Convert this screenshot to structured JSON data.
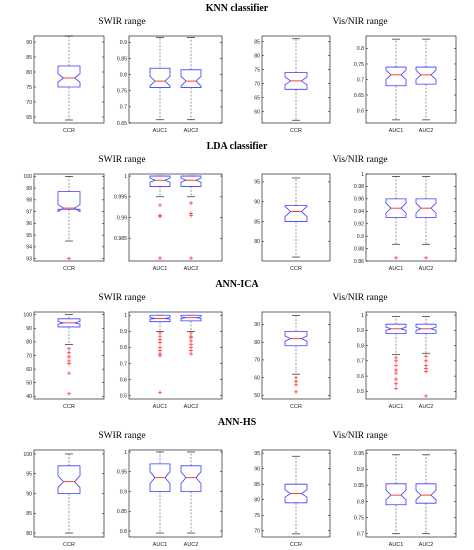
{
  "chart_data": [
    {
      "section": "KNN classifier",
      "range_titles": [
        "SWIR range",
        "Vis/NIR range"
      ],
      "panels": [
        {
          "type": "box",
          "categories": [
            "CCR"
          ],
          "ylim": [
            63,
            92
          ],
          "yticks": [
            "65",
            "70",
            "75",
            "80",
            "85",
            "90"
          ],
          "boxes": [
            {
              "min": 64,
              "q1": 75,
              "median": 78,
              "q3": 82,
              "max": 92,
              "notch_lo": 76.6,
              "notch_hi": 79.4,
              "outliers": []
            }
          ]
        },
        {
          "type": "box",
          "categories": [
            "AUC1",
            "AUC2"
          ],
          "ylim": [
            0.65,
            0.92
          ],
          "yticks": [
            "0.65",
            "0.7",
            "0.75",
            "0.8",
            "0.85",
            "0.9"
          ],
          "boxes": [
            {
              "min": 0.66,
              "q1": 0.76,
              "median": 0.78,
              "q3": 0.82,
              "max": 0.915,
              "notch_lo": 0.765,
              "notch_hi": 0.795,
              "outliers": []
            },
            {
              "min": 0.66,
              "q1": 0.76,
              "median": 0.78,
              "q3": 0.815,
              "max": 0.915,
              "notch_lo": 0.765,
              "notch_hi": 0.795,
              "outliers": []
            }
          ]
        },
        {
          "type": "box",
          "categories": [
            "CCR"
          ],
          "ylim": [
            56,
            87
          ],
          "yticks": [
            "60",
            "65",
            "70",
            "75",
            "80",
            "85"
          ],
          "boxes": [
            {
              "min": 57,
              "q1": 68,
              "median": 71,
              "q3": 74,
              "max": 86,
              "notch_lo": 69.6,
              "notch_hi": 72.4,
              "outliers": []
            }
          ]
        },
        {
          "type": "box",
          "categories": [
            "AUC1",
            "AUC2"
          ],
          "ylim": [
            0.56,
            0.84
          ],
          "yticks": [
            "0.6",
            "0.65",
            "0.7",
            "0.75",
            "0.8"
          ],
          "boxes": [
            {
              "min": 0.57,
              "q1": 0.68,
              "median": 0.715,
              "q3": 0.74,
              "max": 0.83,
              "notch_lo": 0.7,
              "notch_hi": 0.73,
              "outliers": []
            },
            {
              "min": 0.57,
              "q1": 0.685,
              "median": 0.715,
              "q3": 0.74,
              "max": 0.83,
              "notch_lo": 0.7,
              "notch_hi": 0.73,
              "outliers": []
            }
          ]
        }
      ]
    },
    {
      "section": "LDA classifier",
      "range_titles": [
        "SWIR range",
        "Vis/NIR range"
      ],
      "panels": [
        {
          "type": "box",
          "categories": [
            "CCR"
          ],
          "ylim": [
            92.8,
            100.2
          ],
          "yticks": [
            "93",
            "94",
            "95",
            "96",
            "97",
            "98",
            "99",
            "100"
          ],
          "boxes": [
            {
              "min": 94.5,
              "q1": 97.2,
              "median": 97.3,
              "q3": 98.7,
              "max": 100,
              "notch_lo": 97.0,
              "notch_hi": 97.6,
              "outliers": [
                93
              ]
            }
          ]
        },
        {
          "type": "box",
          "categories": [
            "AUC1",
            "AUC2"
          ],
          "ylim": [
            0.9795,
            1.0005
          ],
          "yticks": [
            "0.985",
            "0.99",
            "0.995",
            "1"
          ],
          "boxes": [
            {
              "min": 0.995,
              "q1": 0.9975,
              "median": 0.999,
              "q3": 1.0,
              "max": 1.0,
              "notch_lo": 0.9985,
              "notch_hi": 0.9995,
              "outliers": [
                0.993,
                0.9905,
                0.9903,
                0.9802
              ]
            },
            {
              "min": 0.995,
              "q1": 0.9975,
              "median": 0.999,
              "q3": 1.0,
              "max": 1.0,
              "notch_lo": 0.9985,
              "notch_hi": 0.9995,
              "outliers": [
                0.9935,
                0.991,
                0.9905,
                0.9802
              ]
            }
          ]
        },
        {
          "type": "box",
          "categories": [
            "CCR"
          ],
          "ylim": [
            75,
            97
          ],
          "yticks": [
            "80",
            "85",
            "90",
            "95"
          ],
          "boxes": [
            {
              "min": 76,
              "q1": 85,
              "median": 87.5,
              "q3": 89,
              "max": 96,
              "notch_lo": 86.2,
              "notch_hi": 88.8,
              "outliers": []
            }
          ]
        },
        {
          "type": "box",
          "categories": [
            "AUC1",
            "AUC2"
          ],
          "ylim": [
            0.86,
            1.0
          ],
          "yticks": [
            "0.86",
            "0.88",
            "0.9",
            "0.92",
            "0.94",
            "0.96",
            "0.98",
            "1"
          ],
          "boxes": [
            {
              "min": 0.887,
              "q1": 0.93,
              "median": 0.945,
              "q3": 0.96,
              "max": 0.996,
              "notch_lo": 0.937,
              "notch_hi": 0.953,
              "outliers": [
                0.865
              ]
            },
            {
              "min": 0.887,
              "q1": 0.93,
              "median": 0.945,
              "q3": 0.96,
              "max": 0.996,
              "notch_lo": 0.937,
              "notch_hi": 0.953,
              "outliers": [
                0.865
              ]
            }
          ]
        }
      ]
    },
    {
      "section": "ANN-ICA",
      "range_titles": [
        "SWIR range",
        "Vis/NIR range"
      ],
      "panels": [
        {
          "type": "box",
          "categories": [
            "CCR"
          ],
          "ylim": [
            38,
            102
          ],
          "yticks": [
            "40",
            "50",
            "60",
            "70",
            "80",
            "90",
            "100"
          ],
          "boxes": [
            {
              "min": 78,
              "q1": 91,
              "median": 94,
              "q3": 97,
              "max": 100,
              "notch_lo": 93,
              "notch_hi": 95,
              "outliers": [
                75,
                72,
                69,
                66,
                64,
                57,
                42
              ]
            }
          ]
        },
        {
          "type": "box",
          "categories": [
            "AUC1",
            "AUC2"
          ],
          "ylim": [
            0.48,
            1.02
          ],
          "yticks": [
            "0.5",
            "0.6",
            "0.7",
            "0.8",
            "0.9",
            "1"
          ],
          "boxes": [
            {
              "min": 0.9,
              "q1": 0.96,
              "median": 0.98,
              "q3": 1.0,
              "max": 1.0,
              "notch_lo": 0.975,
              "notch_hi": 0.985,
              "outliers": [
                0.89,
                0.87,
                0.85,
                0.83,
                0.8,
                0.78,
                0.76,
                0.75,
                0.52
              ]
            },
            {
              "min": 0.9,
              "q1": 0.965,
              "median": 0.985,
              "q3": 1.0,
              "max": 1.0,
              "notch_lo": 0.98,
              "notch_hi": 0.99,
              "outliers": [
                0.89,
                0.87,
                0.86,
                0.84,
                0.82,
                0.8,
                0.78,
                0.76
              ]
            }
          ]
        },
        {
          "type": "box",
          "categories": [
            "CCR"
          ],
          "ylim": [
            48,
            97
          ],
          "yticks": [
            "50",
            "60",
            "70",
            "80",
            "90"
          ],
          "boxes": [
            {
              "min": 62,
              "q1": 78,
              "median": 82,
              "q3": 86,
              "max": 95,
              "notch_lo": 80.5,
              "notch_hi": 83.5,
              "outliers": [
                60,
                58,
                56,
                52
              ]
            }
          ]
        },
        {
          "type": "box",
          "categories": [
            "AUC1",
            "AUC2"
          ],
          "ylim": [
            0.45,
            1.02
          ],
          "yticks": [
            "0.5",
            "0.6",
            "0.7",
            "0.8",
            "0.9",
            "1"
          ],
          "boxes": [
            {
              "min": 0.74,
              "q1": 0.88,
              "median": 0.91,
              "q3": 0.94,
              "max": 0.99,
              "notch_lo": 0.9,
              "notch_hi": 0.92,
              "outliers": [
                0.72,
                0.7,
                0.67,
                0.64,
                0.62,
                0.58,
                0.55,
                0.52
              ]
            },
            {
              "min": 0.75,
              "q1": 0.88,
              "median": 0.91,
              "q3": 0.94,
              "max": 0.99,
              "notch_lo": 0.9,
              "notch_hi": 0.92,
              "outliers": [
                0.73,
                0.7,
                0.67,
                0.65,
                0.63,
                0.47
              ]
            }
          ]
        }
      ]
    },
    {
      "section": "ANN-HS",
      "range_titles": [
        "SWIR range",
        "Vis/NIR range"
      ],
      "panels": [
        {
          "type": "box",
          "categories": [
            "CCR"
          ],
          "ylim": [
            79,
            101
          ],
          "yticks": [
            "80",
            "85",
            "90",
            "95",
            "100"
          ],
          "boxes": [
            {
              "min": 80,
              "q1": 90,
              "median": 93,
              "q3": 97,
              "max": 100,
              "notch_lo": 91.5,
              "notch_hi": 94.5,
              "outliers": []
            }
          ]
        },
        {
          "type": "box",
          "categories": [
            "AUC1",
            "AUC2"
          ],
          "ylim": [
            0.785,
            1.005
          ],
          "yticks": [
            "0.8",
            "0.85",
            "0.9",
            "0.95",
            "1"
          ],
          "boxes": [
            {
              "min": 0.795,
              "q1": 0.9,
              "median": 0.935,
              "q3": 0.97,
              "max": 1.0,
              "notch_lo": 0.92,
              "notch_hi": 0.95,
              "outliers": []
            },
            {
              "min": 0.795,
              "q1": 0.9,
              "median": 0.935,
              "q3": 0.965,
              "max": 1.0,
              "notch_lo": 0.92,
              "notch_hi": 0.95,
              "outliers": []
            }
          ]
        },
        {
          "type": "box",
          "categories": [
            "CCR"
          ],
          "ylim": [
            68,
            96
          ],
          "yticks": [
            "70",
            "75",
            "80",
            "85",
            "90",
            "95"
          ],
          "boxes": [
            {
              "min": 69,
              "q1": 79,
              "median": 82,
              "q3": 85,
              "max": 94,
              "notch_lo": 80.8,
              "notch_hi": 83.2,
              "outliers": []
            }
          ]
        },
        {
          "type": "box",
          "categories": [
            "AUC1",
            "AUC2"
          ],
          "ylim": [
            0.69,
            0.96
          ],
          "yticks": [
            "0.7",
            "0.75",
            "0.8",
            "0.85",
            "0.9",
            "0.95"
          ],
          "boxes": [
            {
              "min": 0.7,
              "q1": 0.79,
              "median": 0.82,
              "q3": 0.855,
              "max": 0.945,
              "notch_lo": 0.805,
              "notch_hi": 0.835,
              "outliers": []
            },
            {
              "min": 0.7,
              "q1": 0.795,
              "median": 0.82,
              "q3": 0.855,
              "max": 0.945,
              "notch_lo": 0.805,
              "notch_hi": 0.835,
              "outliers": []
            }
          ]
        }
      ]
    }
  ],
  "colors": {
    "box": "#3a3aff",
    "median": "#ff2a2a",
    "outlier": "#ff2a2a",
    "whisker": "#555555",
    "axis": "#000000"
  }
}
